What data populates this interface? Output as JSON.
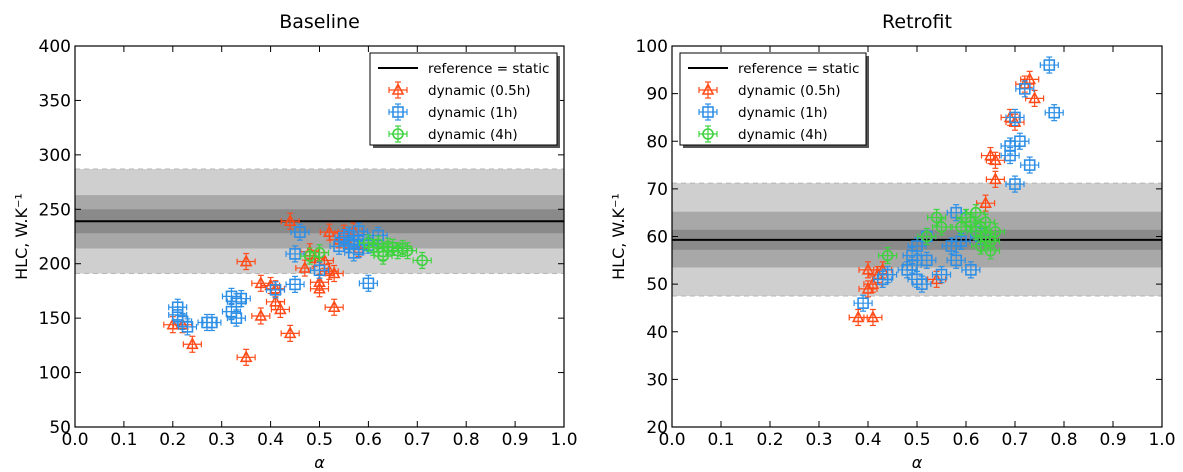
{
  "colors": {
    "reference": "#000000",
    "dynamic_05h": "#ff4c1a",
    "dynamic_1h": "#2e8fe6",
    "dynamic_4h": "#3fd23f",
    "band_outer": "#cfcfcf",
    "band_mid": "#a8a8a8",
    "band_inner": "#8a8a8a"
  },
  "chart_data": [
    {
      "type": "scatter",
      "title": "Baseline",
      "xlabel": "α",
      "ylabel": "HLC, W.K⁻¹",
      "xlim": [
        0.0,
        1.0
      ],
      "ylim": [
        50,
        400
      ],
      "xticks": [
        "0.0",
        "0.1",
        "0.2",
        "0.3",
        "0.4",
        "0.5",
        "0.6",
        "0.7",
        "0.8",
        "0.9",
        "1.0"
      ],
      "yticks": [
        "50",
        "100",
        "150",
        "200",
        "250",
        "300",
        "350",
        "400"
      ],
      "legend_position": "top-right",
      "reference": {
        "name": "reference = static",
        "value": 239,
        "bands": [
          [
            191,
            287
          ],
          [
            214,
            263
          ],
          [
            228,
            250
          ]
        ]
      },
      "series": [
        {
          "name": "dynamic (0.5h)",
          "marker": "triangle",
          "color_key": "dynamic_05h",
          "points": [
            [
              0.2,
              144
            ],
            [
              0.22,
              144
            ],
            [
              0.24,
              126
            ],
            [
              0.35,
              114
            ],
            [
              0.35,
              202
            ],
            [
              0.38,
              152
            ],
            [
              0.38,
              182
            ],
            [
              0.4,
              180
            ],
            [
              0.41,
              165
            ],
            [
              0.41,
              177
            ],
            [
              0.42,
              158
            ],
            [
              0.44,
              136
            ],
            [
              0.44,
              239
            ],
            [
              0.47,
              196
            ],
            [
              0.49,
              205
            ],
            [
              0.5,
              183
            ],
            [
              0.5,
              177
            ],
            [
              0.51,
              203
            ],
            [
              0.52,
              193
            ],
            [
              0.53,
              160
            ],
            [
              0.53,
              191
            ],
            [
              0.54,
              222
            ],
            [
              0.55,
              228
            ],
            [
              0.56,
              218
            ],
            [
              0.57,
              230
            ],
            [
              0.58,
              214
            ],
            [
              0.48,
              211
            ],
            [
              0.52,
              229
            ]
          ]
        },
        {
          "name": "dynamic (1h)",
          "marker": "square",
          "color_key": "dynamic_1h",
          "points": [
            [
              0.21,
              153
            ],
            [
              0.21,
              160
            ],
            [
              0.22,
              147
            ],
            [
              0.23,
              142
            ],
            [
              0.27,
              146
            ],
            [
              0.28,
              146
            ],
            [
              0.32,
              170
            ],
            [
              0.32,
              156
            ],
            [
              0.33,
              150
            ],
            [
              0.33,
              165
            ],
            [
              0.34,
              168
            ],
            [
              0.41,
              176
            ],
            [
              0.45,
              209
            ],
            [
              0.45,
              181
            ],
            [
              0.46,
              229
            ],
            [
              0.5,
              194
            ],
            [
              0.55,
              224
            ],
            [
              0.56,
              218
            ],
            [
              0.56,
              226
            ],
            [
              0.57,
              221
            ],
            [
              0.58,
              213
            ],
            [
              0.58,
              230
            ],
            [
              0.59,
              222
            ],
            [
              0.6,
              217
            ],
            [
              0.6,
              182
            ],
            [
              0.62,
              226
            ],
            [
              0.54,
              216
            ],
            [
              0.57,
              210
            ]
          ]
        },
        {
          "name": "dynamic (4h)",
          "marker": "circle",
          "color_key": "dynamic_4h",
          "points": [
            [
              0.48,
              207
            ],
            [
              0.5,
              210
            ],
            [
              0.61,
              215
            ],
            [
              0.62,
              218
            ],
            [
              0.63,
              211
            ],
            [
              0.64,
              216
            ],
            [
              0.65,
              215
            ],
            [
              0.66,
              212
            ],
            [
              0.68,
              212
            ],
            [
              0.71,
              203
            ],
            [
              0.63,
              207
            ],
            [
              0.6,
              219
            ],
            [
              0.67,
              214
            ]
          ]
        }
      ]
    },
    {
      "type": "scatter",
      "title": "Retrofit",
      "xlabel": "α",
      "ylabel": "HLC, W.K⁻¹",
      "xlim": [
        0.0,
        1.0
      ],
      "ylim": [
        20,
        100
      ],
      "xticks": [
        "0.0",
        "0.1",
        "0.2",
        "0.3",
        "0.4",
        "0.5",
        "0.6",
        "0.7",
        "0.8",
        "0.9",
        "1.0"
      ],
      "yticks": [
        "20",
        "30",
        "40",
        "50",
        "60",
        "70",
        "80",
        "90",
        "100"
      ],
      "legend_position": "top-left",
      "reference": {
        "name": "reference = static",
        "value": 59.3,
        "bands": [
          [
            47.5,
            71.2
          ],
          [
            53.5,
            65.2
          ],
          [
            57.2,
            61.4
          ]
        ]
      },
      "series": [
        {
          "name": "dynamic (0.5h)",
          "marker": "triangle",
          "color_key": "dynamic_05h",
          "points": [
            [
              0.38,
              43
            ],
            [
              0.4,
              53
            ],
            [
              0.4,
              49
            ],
            [
              0.41,
              50
            ],
            [
              0.41,
              43
            ],
            [
              0.42,
              52
            ],
            [
              0.54,
              51
            ],
            [
              0.64,
              67
            ],
            [
              0.65,
              77
            ],
            [
              0.66,
              76
            ],
            [
              0.66,
              72
            ],
            [
              0.69,
              85
            ],
            [
              0.7,
              84
            ],
            [
              0.72,
              92
            ],
            [
              0.73,
              93
            ],
            [
              0.74,
              89
            ],
            [
              0.43,
              53
            ]
          ]
        },
        {
          "name": "dynamic (1h)",
          "marker": "square",
          "color_key": "dynamic_1h",
          "points": [
            [
              0.39,
              46
            ],
            [
              0.43,
              51
            ],
            [
              0.44,
              52
            ],
            [
              0.48,
              53
            ],
            [
              0.49,
              56
            ],
            [
              0.5,
              58
            ],
            [
              0.5,
              51
            ],
            [
              0.51,
              50
            ],
            [
              0.52,
              55
            ],
            [
              0.52,
              60
            ],
            [
              0.55,
              52
            ],
            [
              0.57,
              58
            ],
            [
              0.58,
              65
            ],
            [
              0.58,
              55
            ],
            [
              0.61,
              53
            ],
            [
              0.62,
              61
            ],
            [
              0.63,
              60
            ],
            [
              0.69,
              77
            ],
            [
              0.69,
              79
            ],
            [
              0.7,
              71
            ],
            [
              0.7,
              85
            ],
            [
              0.71,
              80
            ],
            [
              0.73,
              75
            ],
            [
              0.72,
              91
            ],
            [
              0.77,
              96
            ],
            [
              0.78,
              86
            ],
            [
              0.49,
              54
            ],
            [
              0.59,
              59
            ]
          ]
        },
        {
          "name": "dynamic (4h)",
          "marker": "circle",
          "color_key": "dynamic_4h",
          "points": [
            [
              0.44,
              56
            ],
            [
              0.52,
              60
            ],
            [
              0.54,
              64
            ],
            [
              0.55,
              62
            ],
            [
              0.59,
              62
            ],
            [
              0.6,
              64
            ],
            [
              0.61,
              63
            ],
            [
              0.62,
              61
            ],
            [
              0.63,
              58
            ],
            [
              0.63,
              62
            ],
            [
              0.64,
              63
            ],
            [
              0.64,
              60
            ],
            [
              0.65,
              59
            ],
            [
              0.65,
              57
            ],
            [
              0.66,
              61
            ],
            [
              0.62,
              65
            ]
          ]
        }
      ]
    }
  ]
}
